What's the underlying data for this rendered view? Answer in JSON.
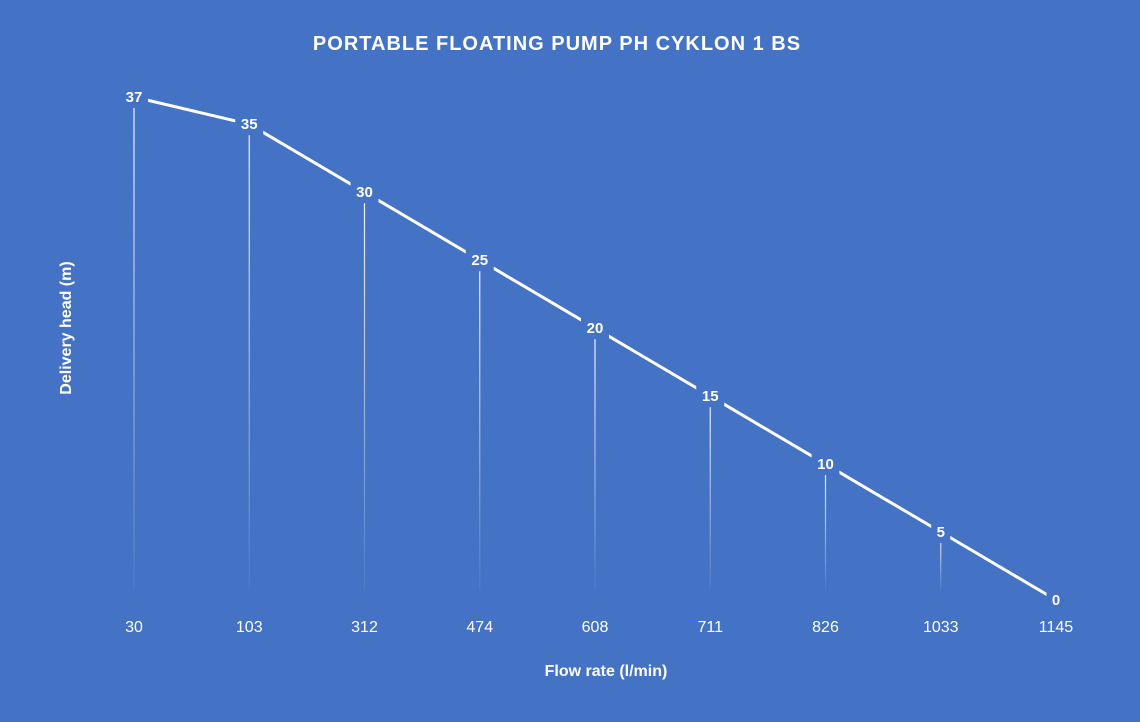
{
  "chart_data": {
    "type": "line",
    "title": "PORTABLE FLOATING PUMP PH CYKLON 1 BS",
    "xlabel": "Flow rate (l/min)",
    "ylabel": "Delivery head (m)",
    "categories": [
      "30",
      "103",
      "312",
      "474",
      "608",
      "711",
      "826",
      "1033",
      "1145"
    ],
    "series": [
      {
        "values": [
          37,
          35,
          30,
          25,
          20,
          15,
          10,
          5,
          0
        ]
      }
    ],
    "ylim": [
      0,
      37
    ],
    "grid": false,
    "drop_lines": true,
    "legend": "none",
    "data_labels": true
  },
  "colors": {
    "background": "#4472c4",
    "line": "#ffffff",
    "text": "#ffffff"
  }
}
